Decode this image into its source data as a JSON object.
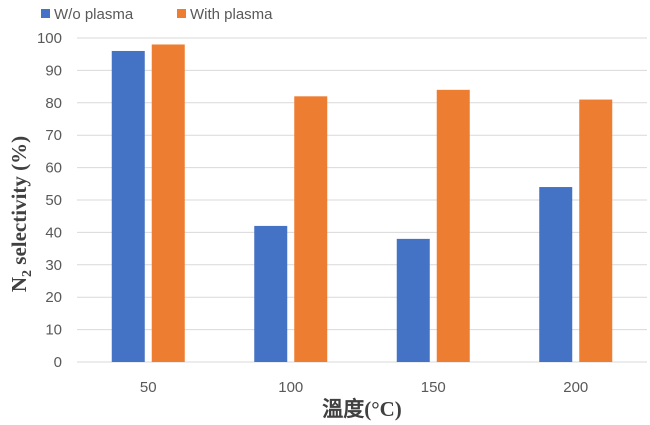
{
  "chart_data": {
    "type": "bar",
    "categories": [
      "50",
      "100",
      "150",
      "200"
    ],
    "series": [
      {
        "name": "W/o plasma",
        "color": "#4472C4",
        "values": [
          96,
          42,
          38,
          54
        ]
      },
      {
        "name": "With plasma",
        "color": "#ED7D31",
        "values": [
          98,
          82,
          84,
          81
        ]
      }
    ],
    "xlabel": "溫度(°C)",
    "ylabel": "N2 selectivity (%)",
    "ylabel_main": "N",
    "ylabel_sub": "2",
    "ylabel_rest": " selectivity (%)",
    "ylim": [
      0,
      100
    ],
    "yticks": [
      0,
      10,
      20,
      30,
      40,
      50,
      60,
      70,
      80,
      90,
      100
    ],
    "grid": true,
    "legend_position": "top-left"
  }
}
